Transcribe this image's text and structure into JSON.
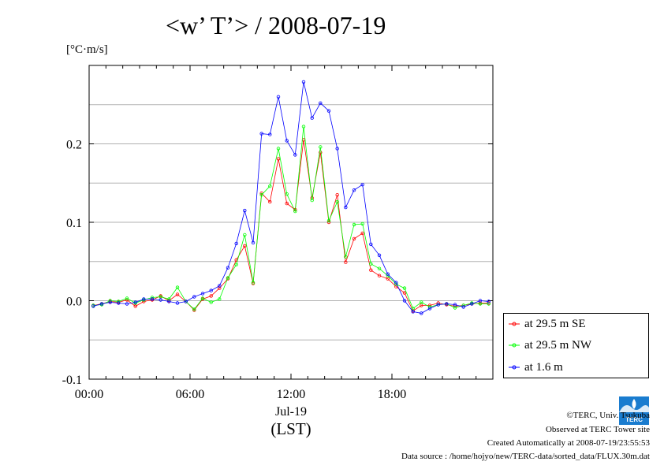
{
  "title": "<w’ T’> / 2008-07-19",
  "unit_label": "[°C·m/s]",
  "chart_data": {
    "type": "line",
    "title": "<w’ T’> / 2008-07-19",
    "ylabel": "[°C·m/s]",
    "xlabel": "Jul-19 (LST)",
    "x_date_label": "Jul-19",
    "x_zone_label": "(LST)",
    "ylim": [
      -0.1,
      0.3
    ],
    "xlim": [
      "00:00",
      "24:00"
    ],
    "x_ticks": [
      "00:00",
      "06:00",
      "12:00",
      "18:00"
    ],
    "y_ticks": [
      "-0.1",
      "0.0",
      "0.1",
      "0.2"
    ],
    "grid": true,
    "legend_position": "bottom-right outside",
    "x": [
      "00:00",
      "00:30",
      "01:00",
      "01:30",
      "02:00",
      "02:30",
      "03:00",
      "03:30",
      "04:00",
      "04:30",
      "05:00",
      "05:30",
      "06:00",
      "06:30",
      "07:00",
      "07:30",
      "08:00",
      "08:30",
      "09:00",
      "09:30",
      "10:00",
      "10:30",
      "11:00",
      "11:30",
      "12:00",
      "12:30",
      "13:00",
      "13:30",
      "14:00",
      "14:30",
      "15:00",
      "15:30",
      "16:00",
      "16:30",
      "17:00",
      "17:30",
      "18:00",
      "18:30",
      "19:00",
      "19:30",
      "20:00",
      "20:30",
      "21:00",
      "21:30",
      "22:00",
      "22:30",
      "23:00",
      "23:30"
    ],
    "series": [
      {
        "name": "at 29.5 m SE",
        "color": "#ff0000",
        "values": [
          -0.006,
          -0.004,
          -0.001,
          -0.002,
          0.001,
          -0.007,
          -0.001,
          0.001,
          0.006,
          0.0,
          0.008,
          -0.001,
          -0.012,
          0.002,
          0.006,
          0.016,
          0.028,
          0.052,
          0.07,
          0.022,
          0.137,
          0.126,
          0.181,
          0.124,
          0.116,
          0.205,
          0.131,
          0.189,
          0.1,
          0.135,
          0.049,
          0.079,
          0.086,
          0.039,
          0.032,
          0.028,
          0.018,
          0.01,
          -0.013,
          -0.006,
          -0.006,
          -0.003,
          -0.005,
          -0.007,
          -0.006,
          -0.004,
          -0.003,
          -0.003
        ]
      },
      {
        "name": "at 29.5 m NW",
        "color": "#00ff00",
        "values": [
          -0.006,
          -0.005,
          0.0,
          -0.001,
          0.003,
          -0.003,
          0.001,
          0.004,
          0.005,
          0.002,
          0.017,
          -0.001,
          -0.011,
          0.003,
          -0.002,
          0.002,
          0.029,
          0.046,
          0.084,
          0.023,
          0.135,
          0.146,
          0.194,
          0.136,
          0.114,
          0.222,
          0.128,
          0.196,
          0.102,
          0.126,
          0.056,
          0.097,
          0.098,
          0.047,
          0.041,
          0.032,
          0.021,
          0.016,
          -0.01,
          -0.002,
          -0.008,
          -0.005,
          -0.004,
          -0.009,
          -0.006,
          -0.003,
          -0.004,
          -0.004
        ]
      },
      {
        "name": "at 1.6 m",
        "color": "#0000ff",
        "values": [
          -0.007,
          -0.004,
          -0.002,
          -0.003,
          -0.004,
          -0.002,
          0.002,
          0.002,
          0.001,
          -0.001,
          -0.003,
          -0.001,
          0.005,
          0.009,
          0.013,
          0.019,
          0.042,
          0.073,
          0.115,
          0.074,
          0.213,
          0.212,
          0.26,
          0.204,
          0.186,
          0.279,
          0.233,
          0.252,
          0.242,
          0.194,
          0.119,
          0.141,
          0.148,
          0.072,
          0.058,
          0.034,
          0.023,
          0.0,
          -0.014,
          -0.016,
          -0.01,
          -0.005,
          -0.004,
          -0.005,
          -0.008,
          -0.004,
          0.0,
          -0.001
        ]
      }
    ]
  },
  "credits": {
    "copyright": "©TERC, Univ. Tsukuba",
    "observed": "Observed at TERC Tower site",
    "created": "Created Automatically at 2008-07-19/23:55:53",
    "source": "Data source : /home/hojyo/new/TERC-data/sorted_data/FLUX.30m.dat",
    "logo_text": "TERC"
  }
}
